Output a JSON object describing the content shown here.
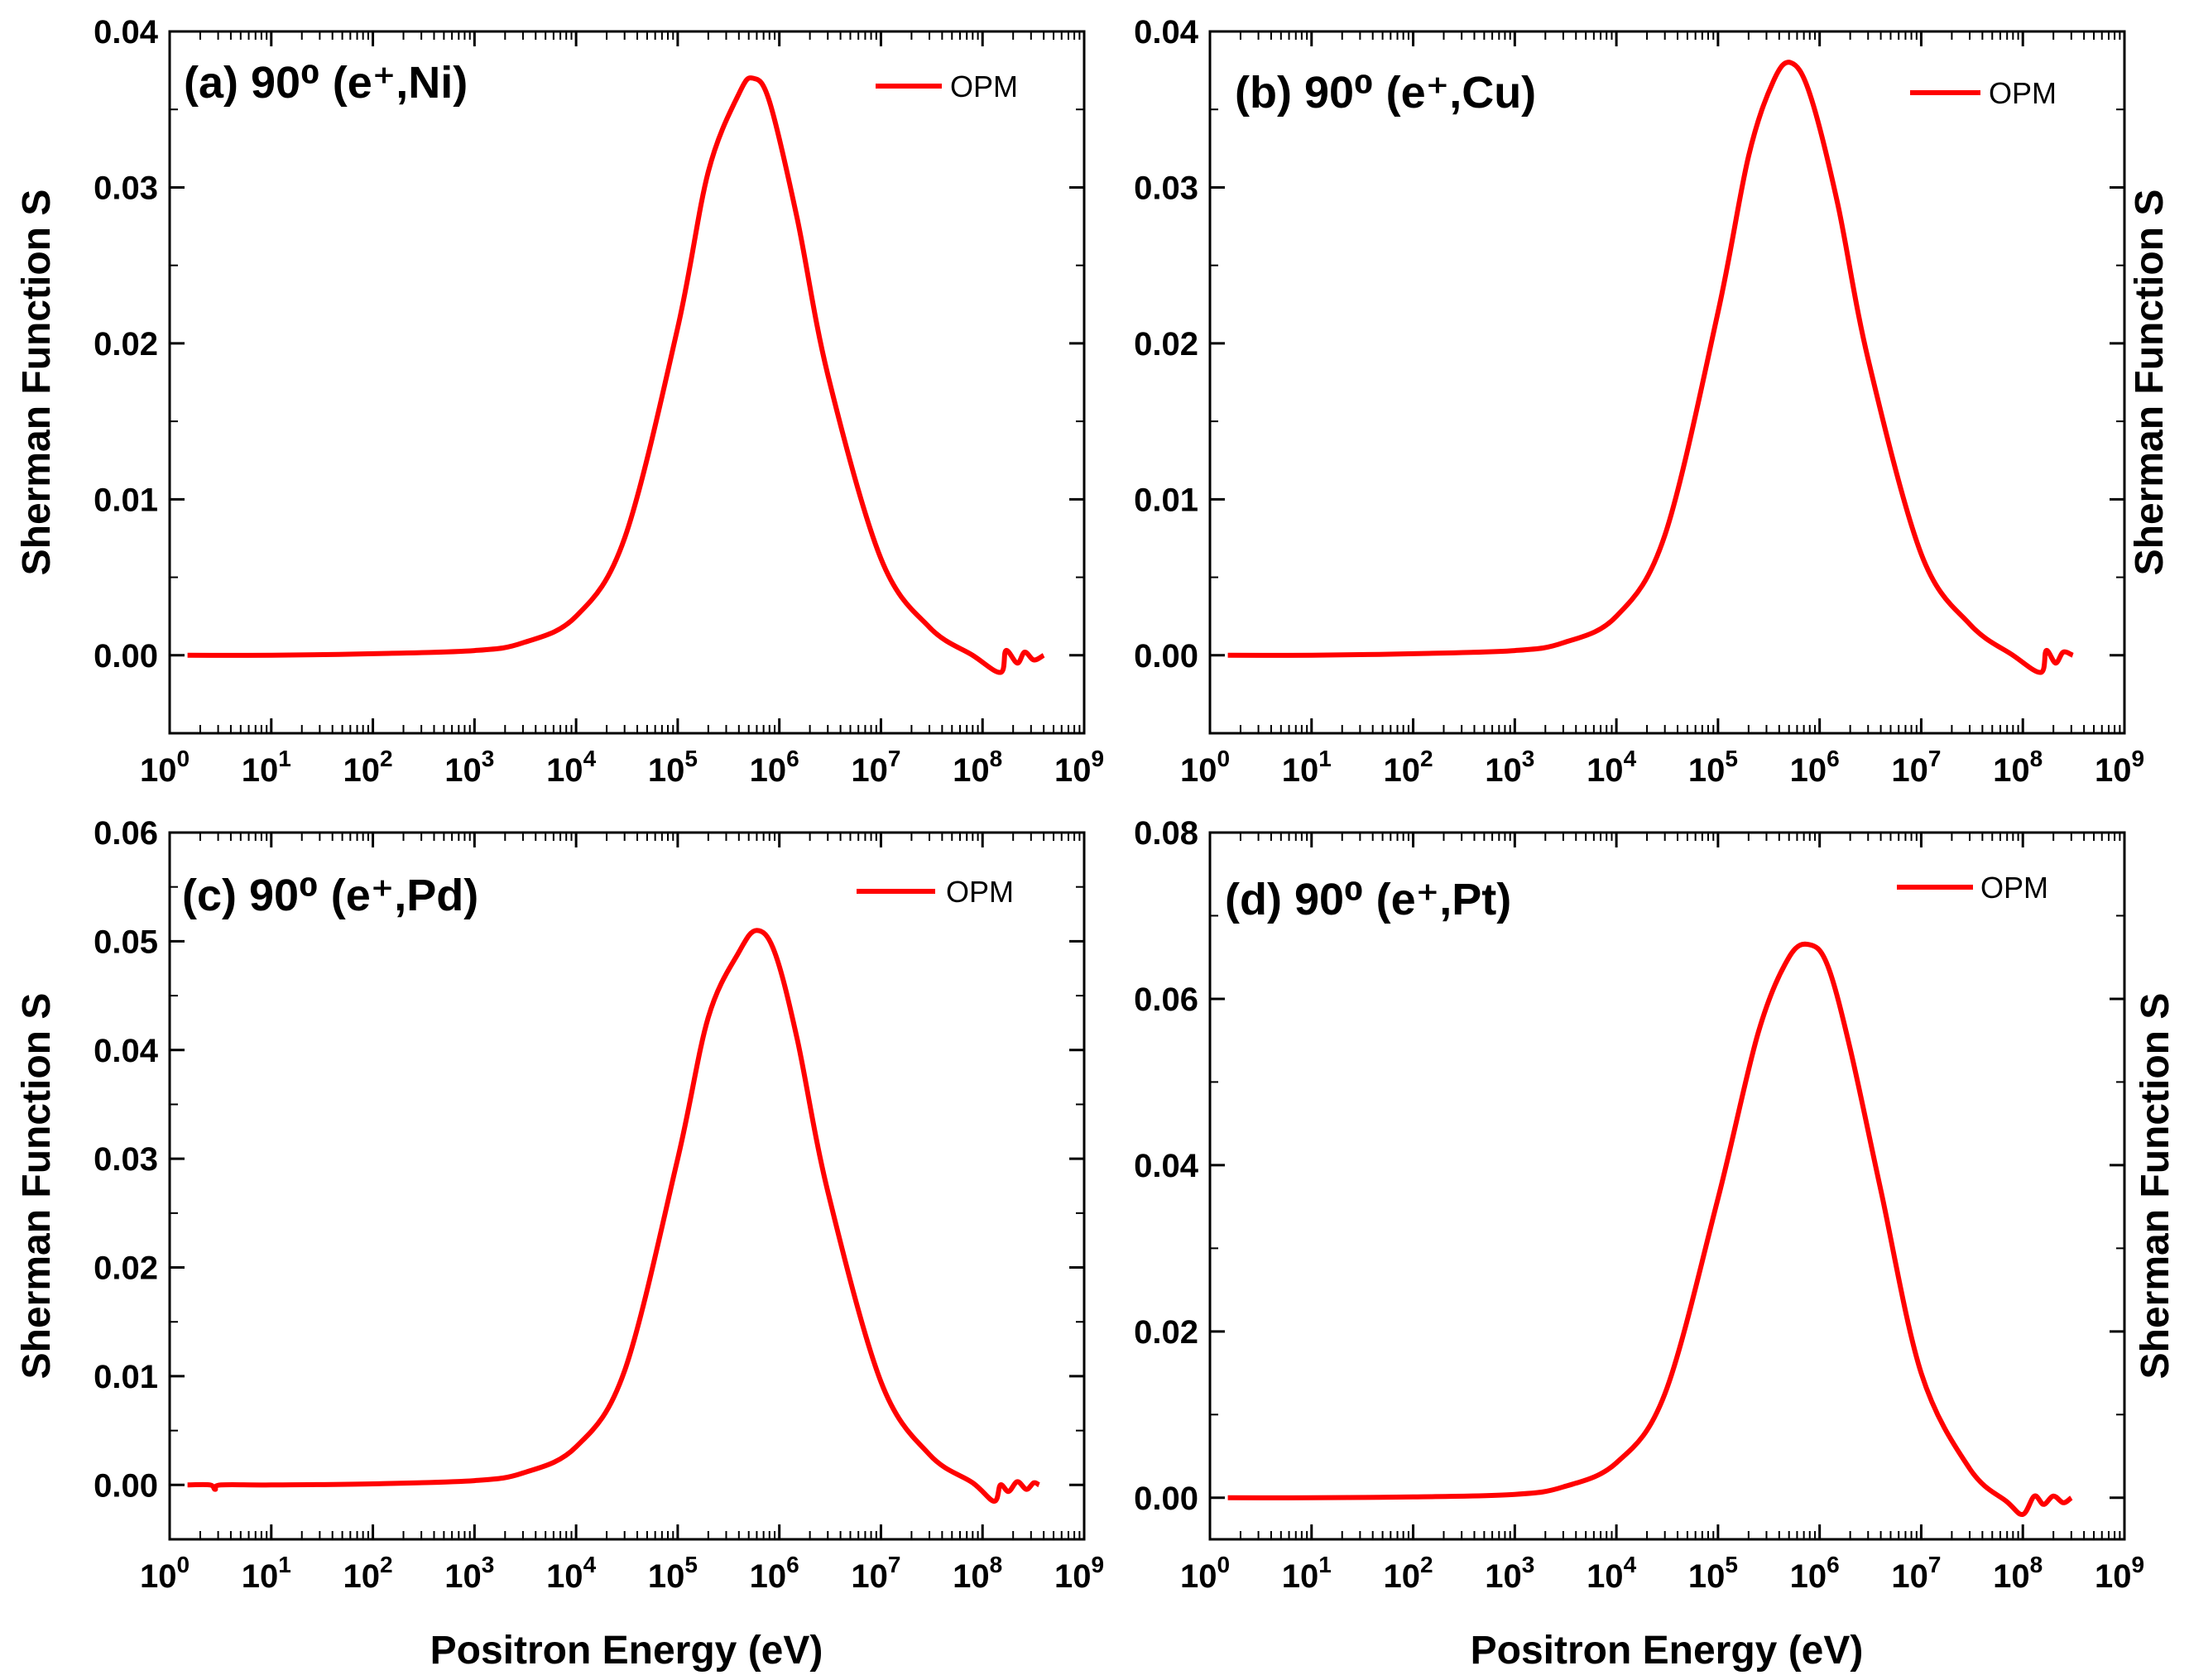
{
  "figure": {
    "x_axis_title": "Positron Energy (eV)",
    "y_axis_title": "Sherman Function S"
  },
  "chart_data": [
    {
      "type": "line",
      "panel": "a",
      "title": "(a) 90⁰ (e⁺,Ni)",
      "xlabel": "",
      "ylabel": "Sherman Function S",
      "xscale": "log",
      "xlim": [
        1,
        1000000000
      ],
      "ylim": [
        -0.005,
        0.04
      ],
      "yticks": [
        0.0,
        0.01,
        0.02,
        0.03,
        0.04
      ],
      "ytick_labels": [
        "0.00",
        "0.01",
        "0.02",
        "0.03",
        "0.04"
      ],
      "xtick_exponents": [
        "0",
        "1",
        "2",
        "3",
        "4",
        "5",
        "6",
        "7",
        "8",
        "9"
      ],
      "legend": [
        "OPM"
      ],
      "legend_position": "top-right",
      "series": [
        {
          "name": "OPM",
          "color": "#ff0000",
          "x": [
            1.5,
            10,
            100,
            1000,
            3000,
            10000,
            30000,
            100000,
            200000,
            400000,
            550000,
            800000,
            1500000,
            3000000,
            10000000,
            30000000,
            80000000,
            150000000,
            170000000,
            220000000,
            260000000,
            320000000,
            400000000
          ],
          "y": [
            0.0,
            0.0,
            0.0001,
            0.0003,
            0.0008,
            0.0025,
            0.0075,
            0.021,
            0.031,
            0.036,
            0.037,
            0.0355,
            0.028,
            0.018,
            0.0062,
            0.0018,
            0.0,
            -0.0011,
            0.0003,
            -0.0005,
            0.0002,
            -0.0003,
            0.0
          ]
        }
      ]
    },
    {
      "type": "line",
      "panel": "b",
      "title": "(b) 90⁰ (e⁺,Cu)",
      "xlabel": "",
      "ylabel": "Sherman Function S",
      "xscale": "log",
      "xlim": [
        1,
        1000000000
      ],
      "ylim": [
        -0.005,
        0.04
      ],
      "yticks": [
        0.0,
        0.01,
        0.02,
        0.03,
        0.04
      ],
      "ytick_labels": [
        "0.00",
        "0.01",
        "0.02",
        "0.03",
        "0.04"
      ],
      "xtick_exponents": [
        "0",
        "1",
        "2",
        "3",
        "4",
        "5",
        "6",
        "7",
        "8",
        "9"
      ],
      "legend": [
        "OPM"
      ],
      "legend_position": "top-right",
      "series": [
        {
          "name": "OPM",
          "color": "#ff0000",
          "x": [
            1.5,
            10,
            100,
            1000,
            3000,
            10000,
            30000,
            100000,
            200000,
            350000,
            520000,
            800000,
            1500000,
            3000000,
            10000000,
            30000000,
            80000000,
            150000000,
            170000000,
            210000000,
            250000000,
            310000000
          ],
          "y": [
            0.0,
            0.0,
            0.0001,
            0.0003,
            0.0008,
            0.0025,
            0.0077,
            0.022,
            0.032,
            0.0368,
            0.038,
            0.036,
            0.029,
            0.019,
            0.0065,
            0.002,
            0.0,
            -0.0011,
            0.0003,
            -0.0005,
            0.0002,
            0.0
          ]
        }
      ]
    },
    {
      "type": "line",
      "panel": "c",
      "title": "(c) 90⁰ (e⁺,Pd)",
      "xlabel": "Positron Energy (eV)",
      "ylabel": "Sherman Function S",
      "xscale": "log",
      "xlim": [
        1,
        1000000000
      ],
      "ylim": [
        -0.005,
        0.06
      ],
      "yticks": [
        0.0,
        0.01,
        0.02,
        0.03,
        0.04,
        0.05,
        0.06
      ],
      "ytick_labels": [
        "0.00",
        "0.01",
        "0.02",
        "0.03",
        "0.04",
        "0.05",
        "0.06"
      ],
      "xtick_exponents": [
        "0",
        "1",
        "2",
        "3",
        "4",
        "5",
        "6",
        "7",
        "8",
        "9"
      ],
      "legend": [
        "OPM"
      ],
      "legend_position": "top-right",
      "series": [
        {
          "name": "OPM",
          "color": "#ff0000",
          "x": [
            1.5,
            2.5,
            2.8,
            3.2,
            10,
            100,
            1000,
            3000,
            10000,
            30000,
            100000,
            200000,
            400000,
            600000,
            900000,
            1500000,
            3000000,
            10000000,
            30000000,
            80000000,
            130000000,
            150000000,
            180000000,
            220000000,
            270000000,
            320000000,
            360000000
          ],
          "y": [
            0.0,
            0.0,
            -0.0004,
            0.0,
            0.0,
            0.0001,
            0.0004,
            0.0011,
            0.0035,
            0.0105,
            0.03,
            0.043,
            0.049,
            0.051,
            0.049,
            0.041,
            0.027,
            0.0095,
            0.0028,
            0.0002,
            -0.0015,
            0.0,
            -0.0006,
            0.0003,
            -0.0004,
            0.0002,
            0.0
          ]
        }
      ]
    },
    {
      "type": "line",
      "panel": "d",
      "title": "(d) 90⁰ (e⁺,Pt)",
      "xlabel": "Positron Energy (eV)",
      "ylabel": "Sherman Function S",
      "xscale": "log",
      "xlim": [
        1,
        1000000000
      ],
      "ylim": [
        -0.005,
        0.08
      ],
      "yticks": [
        0.0,
        0.02,
        0.04,
        0.06,
        0.08
      ],
      "ytick_labels": [
        "0.00",
        "0.02",
        "0.04",
        "0.06",
        "0.08"
      ],
      "xtick_exponents": [
        "0",
        "1",
        "2",
        "3",
        "4",
        "5",
        "6",
        "7",
        "8",
        "9"
      ],
      "legend": [
        "OPM"
      ],
      "legend_position": "top-right",
      "series": [
        {
          "name": "OPM",
          "color": "#ff0000",
          "x": [
            1.5,
            10,
            100,
            1000,
            3000,
            10000,
            30000,
            100000,
            250000,
            500000,
            800000,
            1200000,
            2000000,
            4000000,
            10000000,
            30000000,
            70000000,
            100000000,
            130000000,
            160000000,
            200000000,
            250000000,
            300000000
          ],
          "y": [
            0.0,
            0.0,
            0.0001,
            0.0004,
            0.0013,
            0.0042,
            0.0125,
            0.036,
            0.056,
            0.065,
            0.0665,
            0.064,
            0.054,
            0.037,
            0.015,
            0.0035,
            -0.0005,
            -0.002,
            0.0002,
            -0.0008,
            0.0002,
            -0.0006,
            0.0
          ]
        }
      ]
    }
  ]
}
